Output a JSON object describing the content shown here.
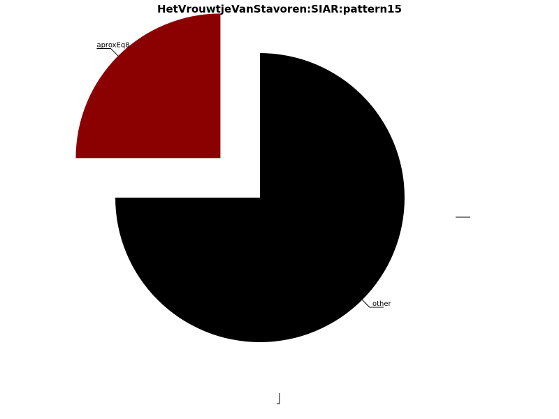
{
  "chart_data": {
    "type": "pie",
    "title": "HetVrouwtjeVanStavoren:SIAR:pattern15",
    "slices": [
      {
        "label": "other",
        "value": 75,
        "color": "#000000",
        "exploded": false
      },
      {
        "label": "aproxEq8",
        "value": 25,
        "color": "#8b0000",
        "exploded": true
      },
      {
        "label": "",
        "value": 0,
        "color": "#ffffff",
        "exploded": false
      },
      {
        "label": "",
        "value": 0,
        "color": "#ffffff",
        "exploded": false
      }
    ],
    "start_angle_deg": 90,
    "direction": "clockwise",
    "legend": "none"
  }
}
